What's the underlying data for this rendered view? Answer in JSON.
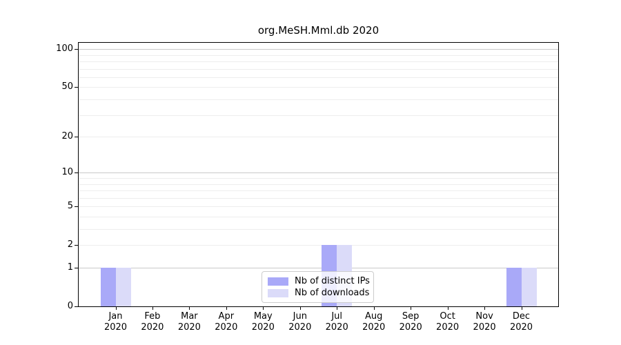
{
  "chart_data": {
    "type": "bar",
    "title": "org.MeSH.Mml.db 2020",
    "scale": "log1p",
    "year_label": "2020",
    "categories": [
      "Jan",
      "Feb",
      "Mar",
      "Apr",
      "May",
      "Jun",
      "Jul",
      "Aug",
      "Sep",
      "Oct",
      "Nov",
      "Dec"
    ],
    "series": [
      {
        "name": "Nb of distinct IPs",
        "color": "#a9a9f8",
        "values": [
          1,
          0,
          0,
          0,
          0,
          0,
          2,
          0,
          0,
          0,
          0,
          1
        ]
      },
      {
        "name": "Nb of downloads",
        "color": "#dbdbf9",
        "values": [
          1,
          0,
          0,
          0,
          0,
          0,
          2,
          0,
          0,
          0,
          0,
          1
        ]
      }
    ],
    "yticks": [
      0,
      1,
      2,
      5,
      10,
      20,
      50,
      100
    ],
    "ylim": [
      0,
      112
    ],
    "grid_major_values": [
      1,
      10,
      100
    ],
    "grid_minor_values": [
      2,
      3,
      4,
      5,
      6,
      7,
      8,
      9,
      20,
      30,
      40,
      50,
      60,
      70,
      80,
      90
    ],
    "legend_position": "lower center"
  },
  "legend": {
    "items": [
      {
        "label": "Nb of distinct IPs"
      },
      {
        "label": "Nb of downloads"
      }
    ]
  },
  "colors": {
    "bar_distinct_ips": "#a9a9f8",
    "bar_downloads": "#dbdbf9",
    "grid_major": "#c9c9c9",
    "grid_minor": "#ededed",
    "axis": "#000000",
    "legend_border": "#cccccc",
    "background": "#ffffff"
  }
}
